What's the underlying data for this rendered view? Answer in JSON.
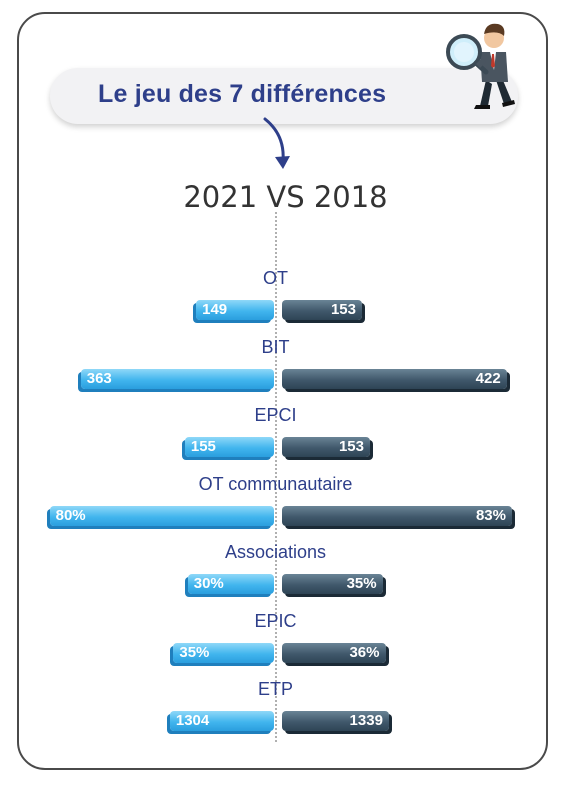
{
  "header": {
    "title": "Le jeu des 7 différences",
    "subtitle": "2021 VS 2018"
  },
  "icons": {
    "arrow": "curved-down-arrow-icon",
    "character": "detective-with-magnifier-icon"
  },
  "colors": {
    "left_bar": "#41b5ee",
    "right_bar": "#40586b",
    "label": "#2e3f8a"
  },
  "chart_data": {
    "type": "bar",
    "orientation": "horizontal-diverging",
    "title": "2021 VS 2018",
    "categories": [
      "OT",
      "BIT",
      "EPCI",
      "OT communautaire",
      "Associations",
      "EPIC",
      "ETP"
    ],
    "series": [
      {
        "values": [
          149,
          363,
          155,
          80,
          30,
          35,
          1304
        ],
        "labels": [
          "149",
          "363",
          "155",
          "80%",
          "30%",
          "35%",
          "1304"
        ]
      },
      {
        "values": [
          153,
          422,
          153,
          83,
          35,
          36,
          1339
        ],
        "labels": [
          "153",
          "422",
          "153",
          "83%",
          "35%",
          "36%",
          "1339"
        ]
      }
    ]
  }
}
